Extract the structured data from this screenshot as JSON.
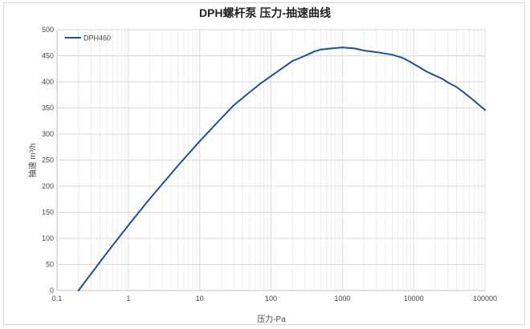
{
  "chart_data": {
    "type": "line",
    "title": "DPH螺杆泵 压力-抽速曲线",
    "xlabel": "压力-Pa",
    "ylabel": "抽速 m³/h",
    "x_scale": "log",
    "xlim": [
      0.1,
      100000
    ],
    "ylim": [
      0,
      500
    ],
    "x_ticks": [
      0.1,
      1,
      10,
      100,
      1000,
      10000,
      100000
    ],
    "x_tick_labels": [
      "0.1",
      "1",
      "10",
      "100",
      "1000",
      "10000",
      "100000"
    ],
    "y_ticks": [
      0,
      50,
      100,
      150,
      200,
      250,
      300,
      350,
      400,
      450,
      500
    ],
    "grid": "major and minor",
    "legend_position": "top-left",
    "series": [
      {
        "name": "DPH460",
        "color": "#1f4e9c",
        "x": [
          0.2,
          0.5,
          1,
          2,
          5,
          10,
          20,
          30,
          50,
          70,
          100,
          150,
          200,
          300,
          400,
          500,
          700,
          1000,
          1500,
          2000,
          3000,
          5000,
          7000,
          9000,
          12000,
          15000,
          20000,
          25000,
          30000,
          40000,
          50000,
          70000,
          100000
        ],
        "y": [
          0,
          72,
          125,
          176,
          240,
          286,
          330,
          355,
          380,
          396,
          411,
          428,
          440,
          450,
          458,
          462,
          464,
          466,
          464,
          460,
          457,
          452,
          446,
          438,
          428,
          420,
          412,
          406,
          399,
          390,
          380,
          364,
          346
        ]
      }
    ]
  }
}
